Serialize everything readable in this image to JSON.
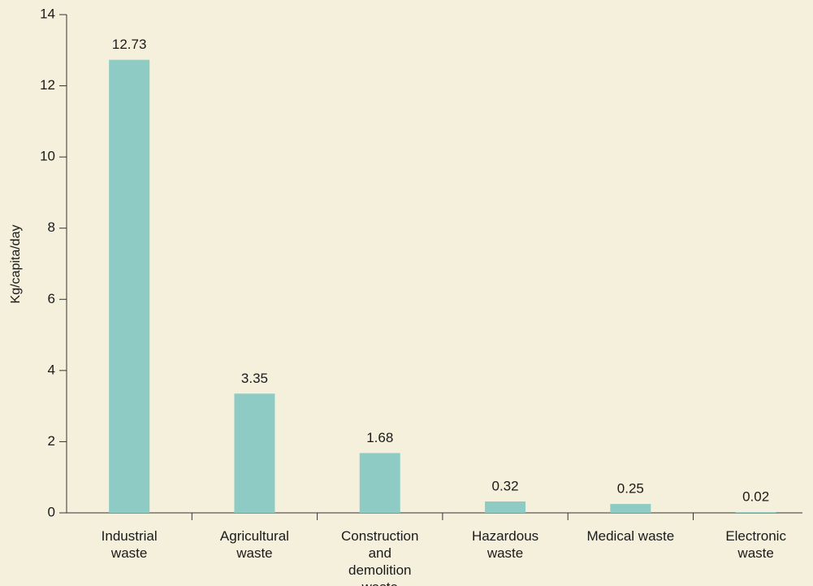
{
  "chart_data": {
    "type": "bar",
    "y_label": "Kg/capita/day",
    "categories": [
      "Industrial waste",
      "Agricultural waste",
      "Construction and demolition waste",
      "Hazardous waste",
      "Medical waste",
      "Electronic waste"
    ],
    "values": [
      12.73,
      3.35,
      1.68,
      0.32,
      0.25,
      0.02
    ],
    "color": "#8fcbc5",
    "ylim": [
      0,
      14
    ],
    "yticks": [
      0,
      2,
      4,
      6,
      8,
      10,
      12,
      14
    ],
    "grid": false
  }
}
